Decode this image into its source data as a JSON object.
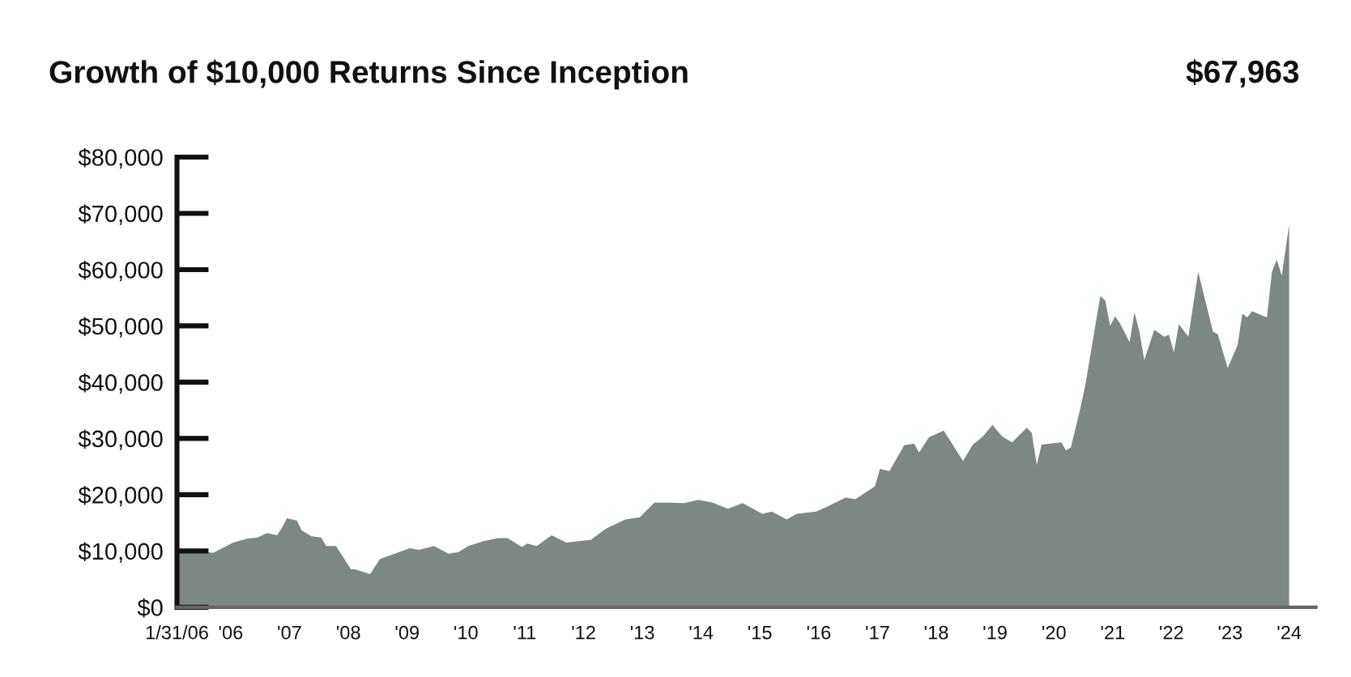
{
  "chart_data": {
    "type": "area",
    "title": "Growth of $10,000 Returns Since Inception",
    "annotations": [
      "$67,963"
    ],
    "x": [
      "2006-01-31",
      "2006-09",
      "2007-01",
      "2007-04",
      "2007-06",
      "2007-08",
      "2007-10",
      "2007-11",
      "2007-12",
      "2008-02",
      "2008-03",
      "2008-05",
      "2008-07",
      "2008-08",
      "2008-10",
      "2009-01",
      "2009-02",
      "2009-05",
      "2009-07",
      "2009-10",
      "2010-01",
      "2010-03",
      "2010-06",
      "2010-09",
      "2010-11",
      "2011-01",
      "2011-04",
      "2011-07",
      "2011-09",
      "2011-12",
      "2012-01",
      "2012-03",
      "2012-06",
      "2012-09",
      "2013-02",
      "2013-05",
      "2013-09",
      "2013-12",
      "2014-03",
      "2014-06",
      "2014-09",
      "2014-12",
      "2015-03",
      "2015-06",
      "2015-09",
      "2016-01",
      "2016-03",
      "2016-06",
      "2016-08",
      "2016-12",
      "2017-03",
      "2017-06",
      "2017-08",
      "2017-12",
      "2018-01",
      "2018-03",
      "2018-06",
      "2018-08",
      "2018-09",
      "2018-11",
      "2019-01",
      "2019-02",
      "2019-06",
      "2019-08",
      "2019-10",
      "2019-12",
      "2020-02",
      "2020-04",
      "2020-07",
      "2020-08",
      "2020-09",
      "2020-10",
      "2021-02",
      "2021-03",
      "2021-04",
      "2021-06",
      "2021-07",
      "2021-10",
      "2021-11",
      "2021-12",
      "2022-01",
      "2022-02",
      "2022-04",
      "2022-05",
      "2022-06",
      "2022-07",
      "2022-09",
      "2022-11",
      "2022-12",
      "2023-01",
      "2023-02",
      "2023-04",
      "2023-06",
      "2023-09",
      "2023-10",
      "2023-12",
      "2024-02",
      "2024-03",
      "2024-04",
      "2024-05",
      "2024-08",
      "2024-09",
      "2024-10",
      "2024-11",
      "2024-12-31"
    ],
    "series": [
      {
        "color": "#7d8885",
        "values": [
          10000,
          9700,
          11500,
          12200,
          12400,
          13200,
          12800,
          14200,
          15800,
          15400,
          13700,
          12600,
          12400,
          10900,
          10900,
          6800,
          6700,
          5900,
          8600,
          9500,
          10500,
          10200,
          10900,
          9500,
          9800,
          10900,
          11700,
          12300,
          12300,
          10700,
          11300,
          10900,
          12800,
          11500,
          12000,
          13900,
          15600,
          16000,
          18600,
          18600,
          18500,
          19100,
          18600,
          17500,
          18500,
          16600,
          17000,
          15600,
          16600,
          17000,
          18200,
          19500,
          19200,
          21500,
          24600,
          24200,
          28800,
          29100,
          27500,
          30200,
          31000,
          31400,
          26000,
          28900,
          30300,
          32400,
          30300,
          29300,
          31900,
          31000,
          25300,
          28900,
          29300,
          27900,
          28400,
          35600,
          39700,
          55300,
          54500,
          50000,
          51700,
          50400,
          47100,
          52400,
          49000,
          43900,
          49300,
          48100,
          48400,
          45300,
          50300,
          48100,
          59600,
          49000,
          48500,
          42500,
          46600,
          52200,
          51500,
          52600,
          51500,
          59600,
          61800,
          58900,
          68000
        ]
      }
    ],
    "xlim": [
      "2006-01-31",
      "2025-06-15"
    ],
    "xticks": [
      {
        "value": "2006-01-31",
        "label": "1/31/06"
      },
      {
        "value": "2006-12-31",
        "label": "'06"
      },
      {
        "value": "2007-12-31",
        "label": "'07"
      },
      {
        "value": "2008-12-31",
        "label": "'08"
      },
      {
        "value": "2009-12-31",
        "label": "'09"
      },
      {
        "value": "2010-12-31",
        "label": "'10"
      },
      {
        "value": "2011-12-31",
        "label": "'11"
      },
      {
        "value": "2012-12-31",
        "label": "'12"
      },
      {
        "value": "2013-12-31",
        "label": "'13"
      },
      {
        "value": "2014-12-31",
        "label": "'14"
      },
      {
        "value": "2015-12-31",
        "label": "'15"
      },
      {
        "value": "2016-12-31",
        "label": "'16"
      },
      {
        "value": "2017-12-31",
        "label": "'17"
      },
      {
        "value": "2018-12-31",
        "label": "'18"
      },
      {
        "value": "2019-12-31",
        "label": "'19"
      },
      {
        "value": "2020-12-31",
        "label": "'20"
      },
      {
        "value": "2021-12-31",
        "label": "'21"
      },
      {
        "value": "2022-12-31",
        "label": "'22"
      },
      {
        "value": "2023-12-31",
        "label": "'23"
      },
      {
        "value": "2024-12-31",
        "label": "'24"
      }
    ],
    "ylim": [
      0,
      80000
    ],
    "yticks": [
      {
        "value": 0,
        "label": "$0"
      },
      {
        "value": 10000,
        "label": "$10,000"
      },
      {
        "value": 20000,
        "label": "$20,000"
      },
      {
        "value": 30000,
        "label": "$30,000"
      },
      {
        "value": 40000,
        "label": "$40,000"
      },
      {
        "value": 50000,
        "label": "$50,000"
      },
      {
        "value": 60000,
        "label": "$60,000"
      },
      {
        "value": 70000,
        "label": "$70,000"
      },
      {
        "value": 80000,
        "label": "$80,000"
      }
    ],
    "grid": false
  }
}
